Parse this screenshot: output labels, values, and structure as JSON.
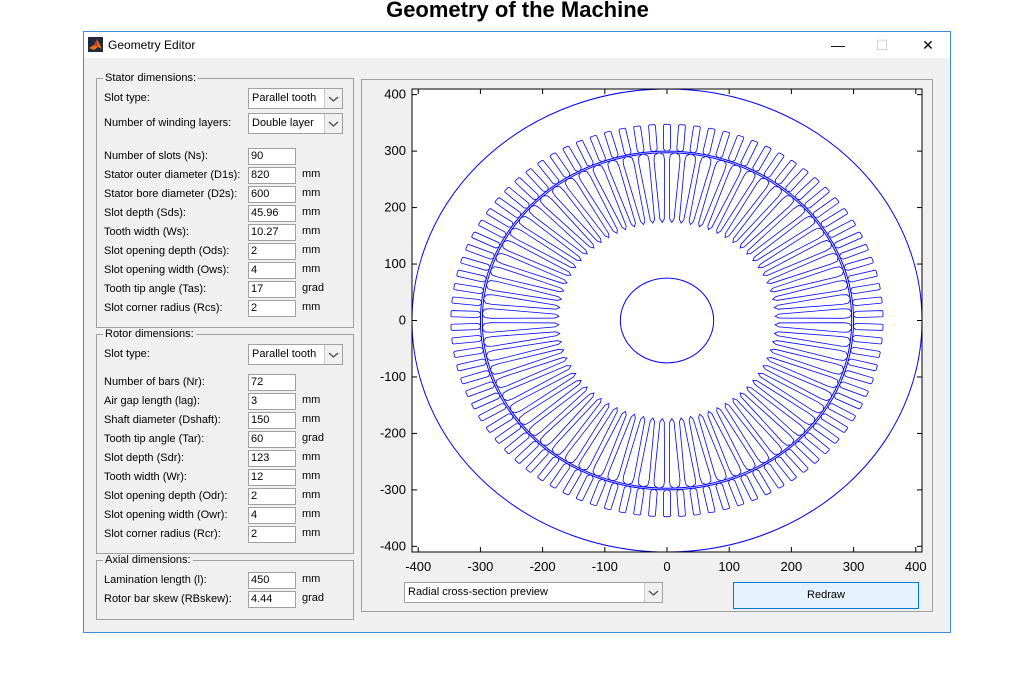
{
  "heading": "Geometry of the Machine",
  "window": {
    "title": "Geometry Editor",
    "minimize_glyph": "—",
    "maximize_glyph": "☐",
    "close_glyph": "✕"
  },
  "stator": {
    "legend": "Stator dimensions:",
    "slot_type_label": "Slot type:",
    "slot_type_value": "Parallel tooth",
    "winding_label": "Number of winding layers:",
    "winding_value": "Double layer",
    "fields": [
      {
        "label": "Number of slots (Ns):",
        "value": "90",
        "unit": ""
      },
      {
        "label": "Stator outer diameter (D1s):",
        "value": "820",
        "unit": "mm"
      },
      {
        "label": "Stator bore diameter (D2s):",
        "value": "600",
        "unit": "mm"
      },
      {
        "label": "Slot depth (Sds):",
        "value": "45.96",
        "unit": "mm"
      },
      {
        "label": "Tooth width (Ws):",
        "value": "10.27",
        "unit": "mm"
      },
      {
        "label": "Slot opening depth (Ods):",
        "value": "2",
        "unit": "mm"
      },
      {
        "label": "Slot opening width (Ows):",
        "value": "4",
        "unit": "mm"
      },
      {
        "label": "Tooth tip angle (Tas):",
        "value": "17",
        "unit": "grad"
      },
      {
        "label": "Slot corner radius (Rcs):",
        "value": "2",
        "unit": "mm"
      }
    ]
  },
  "rotor": {
    "legend": "Rotor dimensions:",
    "slot_type_label": "Slot type:",
    "slot_type_value": "Parallel tooth",
    "fields": [
      {
        "label": "Number of bars (Nr):",
        "value": "72",
        "unit": ""
      },
      {
        "label": "Air gap length (lag):",
        "value": "3",
        "unit": "mm"
      },
      {
        "label": "Shaft diameter (Dshaft):",
        "value": "150",
        "unit": "mm"
      },
      {
        "label": "Tooth tip angle (Tar):",
        "value": "60",
        "unit": "grad"
      },
      {
        "label": "Slot depth (Sdr):",
        "value": "123",
        "unit": "mm"
      },
      {
        "label": "Tooth width (Wr):",
        "value": "12",
        "unit": "mm"
      },
      {
        "label": "Slot opening depth (Odr):",
        "value": "2",
        "unit": "mm"
      },
      {
        "label": "Slot opening width (Owr):",
        "value": "4",
        "unit": "mm"
      },
      {
        "label": "Slot corner radius (Rcr):",
        "value": "2",
        "unit": "mm"
      }
    ]
  },
  "axial": {
    "legend": "Axial dimensions:",
    "fields": [
      {
        "label": "Lamination length (l):",
        "value": "450",
        "unit": "mm"
      },
      {
        "label": "Rotor bar skew (RBskew):",
        "value": "4.44",
        "unit": "grad"
      }
    ]
  },
  "preview_select": "Radial cross-section preview",
  "redraw_label": "Redraw",
  "chart_data": {
    "type": "line",
    "title": "",
    "xlim": [
      -410,
      410
    ],
    "ylim": [
      -410,
      410
    ],
    "xticks": [
      -400,
      -300,
      -200,
      -100,
      0,
      100,
      200,
      300,
      400
    ],
    "yticks": [
      -400,
      -300,
      -200,
      -100,
      0,
      100,
      200,
      300,
      400
    ],
    "line_color": "#0000ff",
    "stator_outer_diameter": 820,
    "stator_bore_diameter": 600,
    "stator_slots": 90,
    "stator_slot_depth": 45.96,
    "rotor_bars": 72,
    "air_gap": 3,
    "shaft_diameter": 150,
    "rotor_slot_depth": 123
  }
}
